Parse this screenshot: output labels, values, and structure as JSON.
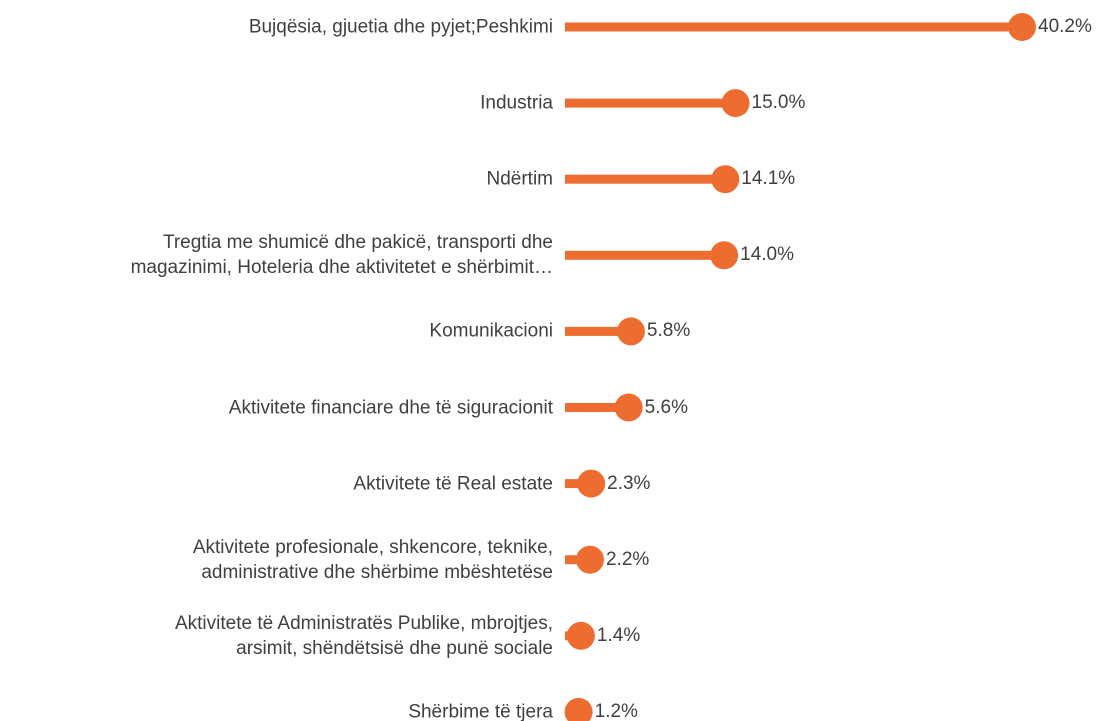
{
  "chart_data": {
    "type": "lollipop",
    "categories": [
      "Bujqësia, gjuetia dhe pyjet;Peshkimi",
      "Industria",
      "Ndërtim",
      "Tregtia me shumicë dhe pakicë, transporti dhe\nmagazinimi, Hoteleria dhe aktivitetet e shërbimit…",
      "Komunikacioni",
      "Aktivitete financiare dhe të siguracionit",
      "Aktivitete të Real estate",
      "Aktivitete profesionale, shkencore, teknike,\nadministrative dhe shërbime mbështetëse",
      "Aktivitete të Administratës Publike, mbrojtjes,\narsimit, shëndëtsisë dhe punë sociale",
      "Shërbime të tjera"
    ],
    "values": [
      40.2,
      15.0,
      14.1,
      14.0,
      5.8,
      5.6,
      2.3,
      2.2,
      1.4,
      1.2
    ],
    "value_labels": [
      "40.2%",
      "15.0%",
      "14.1%",
      "14.0%",
      "5.8%",
      "5.6%",
      "2.3%",
      "2.2%",
      "1.4%",
      "1.2%"
    ],
    "color": "#ED6D31"
  }
}
